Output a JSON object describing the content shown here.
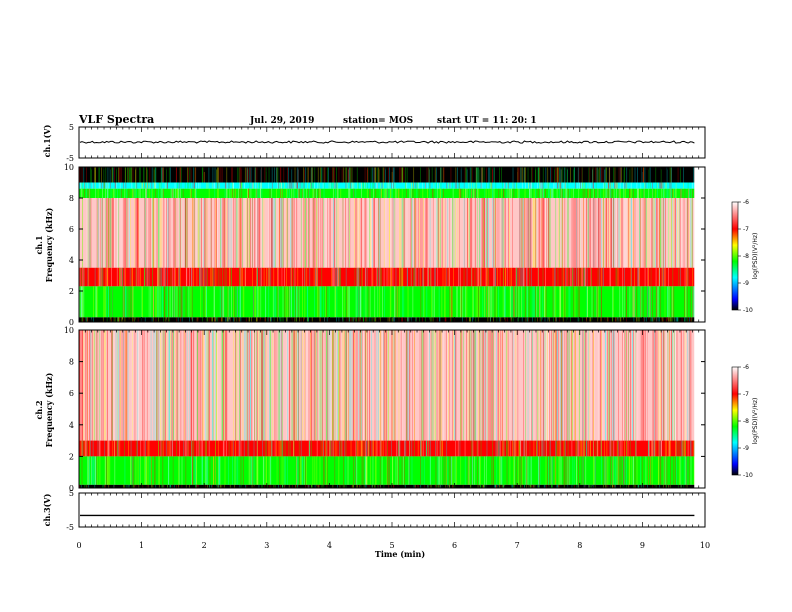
{
  "header": {
    "title": "VLF Spectra",
    "date": "Jul. 29, 2019",
    "station": "station= MOS",
    "start_ut": "start UT =  11: 20: 1"
  },
  "chart_data": [
    {
      "type": "line",
      "name": "ch1-waveform",
      "ylabel": "ch.1(V)",
      "ylim": [
        -5,
        5
      ],
      "y_ticks": [
        "5",
        "-5"
      ],
      "level": 0.15,
      "color": "#000000"
    },
    {
      "type": "heatmap",
      "name": "ch1-spectrogram",
      "ylabel": "ch.1 Frequency (kHz)",
      "ylim": [
        0,
        10
      ],
      "y_ticks": [
        "0",
        "2",
        "4",
        "6",
        "8",
        "10"
      ],
      "bands": [
        {
          "f0": 9.0,
          "f1": 10.0,
          "level": -10.0
        },
        {
          "f0": 8.6,
          "f1": 9.0,
          "level": -8.5
        },
        {
          "f0": 8.0,
          "f1": 8.6,
          "level": -7.6
        },
        {
          "f0": 3.5,
          "f1": 8.0,
          "level": -6.6
        },
        {
          "f0": 2.3,
          "f1": 3.5,
          "level": -7.0
        },
        {
          "f0": 0.3,
          "f1": 2.3,
          "level": -8.0
        },
        {
          "f0": 0.0,
          "f1": 0.3,
          "level": -10.0
        }
      ],
      "colorbar": {
        "label": "log(PSD)(V²/Hz)",
        "ticks": [
          "-6",
          "-7",
          "-8",
          "-9",
          "-10"
        ],
        "range": [
          -10,
          -6
        ]
      }
    },
    {
      "type": "heatmap",
      "name": "ch2-spectrogram",
      "ylabel": "ch.2 Frequency (kHz)",
      "ylim": [
        0,
        10
      ],
      "y_ticks": [
        "0",
        "2",
        "4",
        "6",
        "8",
        "10"
      ],
      "bands": [
        {
          "f0": 3.0,
          "f1": 10.0,
          "level": -6.5
        },
        {
          "f0": 2.0,
          "f1": 3.0,
          "level": -7.0
        },
        {
          "f0": 0.2,
          "f1": 2.0,
          "level": -8.0
        },
        {
          "f0": 0.0,
          "f1": 0.2,
          "level": -9.5
        }
      ],
      "colorbar": {
        "label": "log(PSD)(V²/Hz)",
        "ticks": [
          "-6",
          "-7",
          "-8",
          "-9",
          "-10"
        ],
        "range": [
          -10,
          -6
        ]
      }
    },
    {
      "type": "line",
      "name": "ch3-waveform",
      "ylabel": "ch.3(V)",
      "ylim": [
        -5,
        5
      ],
      "y_ticks": [
        "5",
        "-5"
      ],
      "level": -1.6,
      "color": "#000000"
    }
  ],
  "x_axis": {
    "label": "Time (min)",
    "range": [
      0,
      10
    ],
    "ticks": [
      "0",
      "1",
      "2",
      "3",
      "4",
      "5",
      "6",
      "7",
      "8",
      "9",
      "10"
    ],
    "data_end": 9.83
  },
  "colors": {
    "red": "#ff0000",
    "yellow": "#ffff00",
    "green": "#00ff00",
    "cyan": "#00ffff",
    "blue": "#0000ff",
    "black": "#000000"
  }
}
